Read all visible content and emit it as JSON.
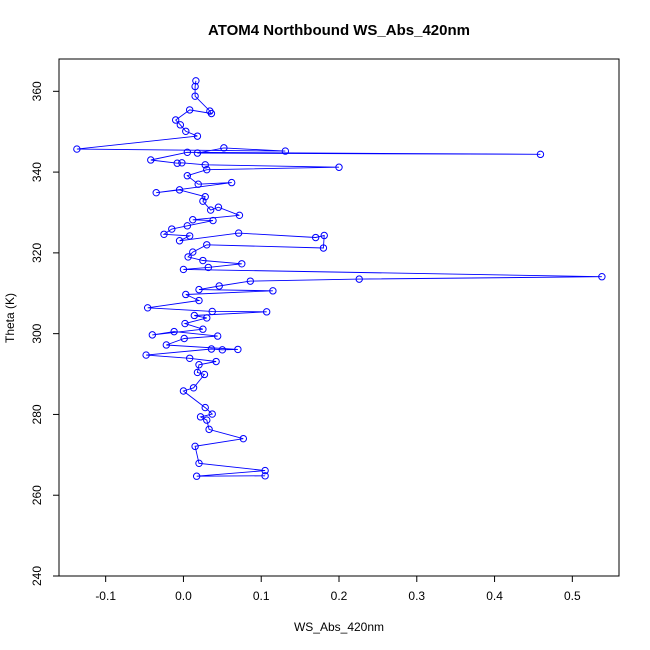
{
  "chart_data": {
    "type": "line",
    "title": "ATOM4 Northbound WS_Abs_420nm",
    "xlabel": "WS_Abs_420nm",
    "ylabel": "Theta (K)",
    "xlim": [
      -0.16,
      0.56
    ],
    "ylim": [
      240,
      368
    ],
    "xticks": [
      -0.1,
      0.0,
      0.1,
      0.2,
      0.3,
      0.4,
      0.5
    ],
    "xtick_labels": [
      "-0.1",
      "0.0",
      "0.1",
      "0.2",
      "0.3",
      "0.4",
      "0.5"
    ],
    "yticks": [
      240,
      260,
      280,
      300,
      320,
      340,
      360
    ],
    "ytick_labels": [
      "240",
      "260",
      "280",
      "300",
      "320",
      "340",
      "360"
    ],
    "grid": false,
    "legend": "none",
    "marker": "open-circle",
    "series": [
      {
        "color": "#0000ff",
        "points": [
          [
            0.016,
            362.6
          ],
          [
            0.015,
            361.2
          ],
          [
            0.015,
            358.8
          ],
          [
            0.034,
            355.1
          ],
          [
            0.036,
            354.5
          ],
          [
            0.008,
            355.4
          ],
          [
            -0.01,
            352.9
          ],
          [
            -0.004,
            351.7
          ],
          [
            0.003,
            350.1
          ],
          [
            0.018,
            348.9
          ],
          [
            -0.137,
            345.7
          ],
          [
            0.131,
            345.2
          ],
          [
            0.052,
            346.0
          ],
          [
            0.018,
            344.7
          ],
          [
            0.459,
            344.4
          ],
          [
            0.005,
            344.9
          ],
          [
            -0.042,
            343.0
          ],
          [
            -0.008,
            342.2
          ],
          [
            -0.002,
            342.3
          ],
          [
            0.028,
            341.8
          ],
          [
            0.2,
            341.2
          ],
          [
            0.03,
            340.6
          ],
          [
            0.005,
            339.1
          ],
          [
            0.019,
            337.0
          ],
          [
            0.062,
            337.4
          ],
          [
            -0.035,
            334.9
          ],
          [
            -0.005,
            335.6
          ],
          [
            0.028,
            333.9
          ],
          [
            0.025,
            332.8
          ],
          [
            0.035,
            330.6
          ],
          [
            0.045,
            331.3
          ],
          [
            0.072,
            329.3
          ],
          [
            0.012,
            328.2
          ],
          [
            0.038,
            328.0
          ],
          [
            0.005,
            326.7
          ],
          [
            -0.015,
            325.9
          ],
          [
            -0.025,
            324.6
          ],
          [
            0.008,
            324.2
          ],
          [
            -0.005,
            323.0
          ],
          [
            0.071,
            324.9
          ],
          [
            0.17,
            323.8
          ],
          [
            0.181,
            324.3
          ],
          [
            0.18,
            321.2
          ],
          [
            0.03,
            322.0
          ],
          [
            0.012,
            320.2
          ],
          [
            0.006,
            319.0
          ],
          [
            0.025,
            318.1
          ],
          [
            0.075,
            317.3
          ],
          [
            0.032,
            316.4
          ],
          [
            0.0,
            315.9
          ],
          [
            0.538,
            314.1
          ],
          [
            0.226,
            313.5
          ],
          [
            0.086,
            313.0
          ],
          [
            0.046,
            311.8
          ],
          [
            0.02,
            310.9
          ],
          [
            0.115,
            310.6
          ],
          [
            0.003,
            309.7
          ],
          [
            0.02,
            308.2
          ],
          [
            -0.046,
            306.4
          ],
          [
            0.037,
            305.5
          ],
          [
            0.107,
            305.4
          ],
          [
            0.014,
            304.5
          ],
          [
            0.03,
            303.9
          ],
          [
            0.002,
            302.5
          ],
          [
            0.025,
            301.1
          ],
          [
            -0.04,
            299.7
          ],
          [
            -0.012,
            300.5
          ],
          [
            0.044,
            299.4
          ],
          [
            0.001,
            298.8
          ],
          [
            -0.022,
            297.2
          ],
          [
            0.07,
            296.1
          ],
          [
            0.05,
            296.0
          ],
          [
            0.036,
            296.2
          ],
          [
            -0.048,
            294.7
          ],
          [
            0.008,
            293.9
          ],
          [
            0.042,
            293.1
          ],
          [
            0.02,
            292.3
          ],
          [
            0.018,
            290.4
          ],
          [
            0.027,
            289.9
          ],
          [
            0.013,
            286.6
          ],
          [
            0.0,
            285.8
          ],
          [
            0.028,
            281.7
          ],
          [
            0.037,
            280.1
          ],
          [
            0.022,
            279.4
          ],
          [
            0.03,
            278.6
          ],
          [
            0.033,
            276.3
          ],
          [
            0.077,
            274.0
          ],
          [
            0.015,
            272.1
          ],
          [
            0.02,
            267.9
          ],
          [
            0.105,
            266.1
          ],
          [
            0.017,
            264.7
          ],
          [
            0.105,
            264.8
          ]
        ]
      }
    ]
  }
}
